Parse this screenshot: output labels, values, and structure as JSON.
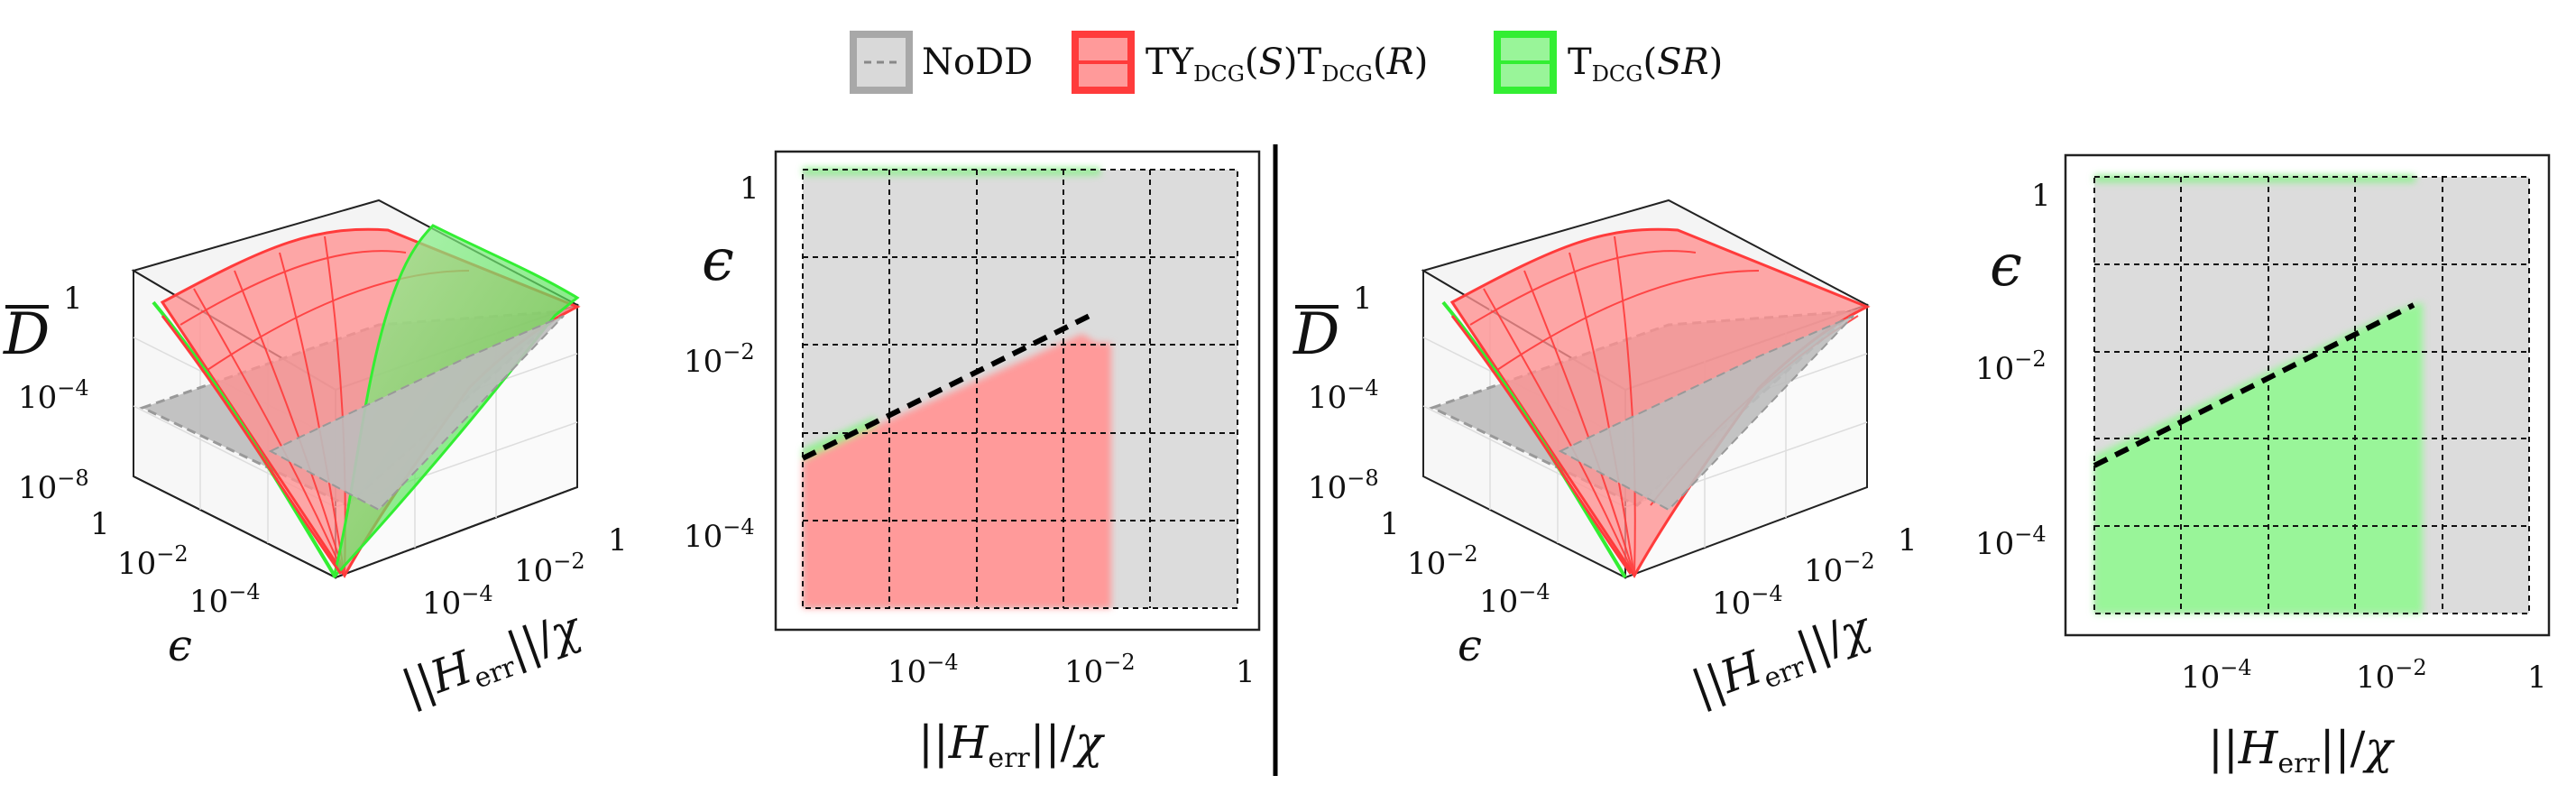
{
  "colors": {
    "nodd": "#b0b0b0",
    "nodd_fill": "#d9d9d9",
    "ty": "#ff3b3b",
    "ty_fill": "#ff9a9a",
    "t": "#33ee33",
    "t_fill": "#99f599",
    "bg_region": "#dcdcdc"
  },
  "legend": {
    "items": [
      {
        "name": "NoDD",
        "color_key": "nodd"
      },
      {
        "name": "TY_DCG(S)T_DCG(R)",
        "color_key": "ty"
      },
      {
        "name": "T_DCG(SR)",
        "color_key": "t"
      }
    ]
  },
  "chart_data": [
    {
      "type": "surface3d",
      "panel": "left-3d",
      "zlabel": "D̄",
      "xlabel": "ε",
      "ylabel": "||H_err||/χ",
      "x_ticks": [
        "1",
        "10⁻²",
        "10⁻⁴"
      ],
      "y_ticks": [
        "10⁻⁴",
        "10⁻²",
        "1"
      ],
      "z_ticks": [
        "1",
        "10⁻⁴",
        "10⁻⁸"
      ],
      "series": [
        "NoDD",
        "TY_DCG(S)T_DCG(R)",
        "T_DCG(SR)"
      ]
    },
    {
      "type": "heatmap",
      "panel": "left-2d",
      "xlabel": "||H_err||/χ",
      "ylabel": "ε",
      "x_ticks": [
        "10⁻⁴",
        "10⁻²",
        "1"
      ],
      "y_ticks": [
        "1",
        "10⁻²",
        "10⁻⁴"
      ],
      "region_series": "TY_DCG(S)T_DCG(R)",
      "region_x_max": 0.03,
      "dashed_line": [
        [
          3.1e-06,
          0.0006
        ],
        [
          0.16,
          0.06
        ]
      ],
      "grid": true
    },
    {
      "type": "surface3d",
      "panel": "right-3d",
      "zlabel": "D̄",
      "xlabel": "ε",
      "ylabel": "||H_err||/χ",
      "x_ticks": [
        "1",
        "10⁻²",
        "10⁻⁴"
      ],
      "y_ticks": [
        "10⁻⁴",
        "10⁻²",
        "1"
      ],
      "z_ticks": [
        "1",
        "10⁻⁴",
        "10⁻⁸"
      ],
      "series": [
        "NoDD",
        "TY_DCG(S)T_DCG(R)",
        "T_DCG(SR)"
      ]
    },
    {
      "type": "heatmap",
      "panel": "right-2d",
      "xlabel": "||H_err||/χ",
      "ylabel": "ε",
      "x_ticks": [
        "10⁻⁴",
        "10⁻²",
        "1"
      ],
      "y_ticks": [
        "1",
        "10⁻²",
        "10⁻⁴"
      ],
      "region_series": "T_DCG(SR)",
      "region_x_max": 0.03,
      "dashed_line": [
        [
          3.1e-06,
          0.0006
        ],
        [
          0.03,
          0.04
        ]
      ],
      "grid": true
    }
  ]
}
